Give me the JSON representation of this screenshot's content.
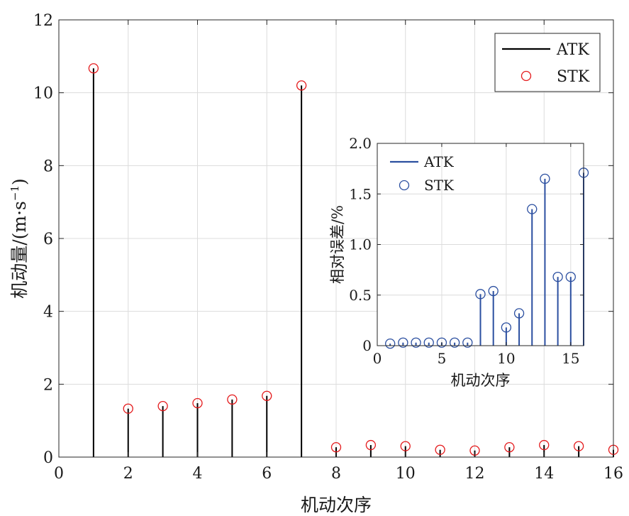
{
  "chart_data": [
    {
      "type": "stem",
      "xlabel": "机动次序",
      "ylabel": "机动量/(m·s⁻¹)",
      "ylabel_base": "机动量/(m·s",
      "ylabel_sup": "−1",
      "ylabel_close": ")",
      "xlim": [
        0,
        16
      ],
      "ylim": [
        0,
        12
      ],
      "xticks": [
        "0",
        "2",
        "4",
        "6",
        "8",
        "10",
        "12",
        "14",
        "16"
      ],
      "yticks": [
        "0",
        "2",
        "4",
        "6",
        "8",
        "10",
        "12"
      ],
      "grid": true,
      "legend_position": "top-right",
      "x": [
        1,
        2,
        3,
        4,
        5,
        6,
        7,
        8,
        9,
        10,
        11,
        12,
        13,
        14,
        15,
        16
      ],
      "series": [
        {
          "name": "ATK",
          "style": "stem",
          "color": "#000000",
          "values": [
            10.67,
            1.33,
            1.4,
            1.48,
            1.58,
            1.68,
            10.2,
            0.27,
            0.33,
            0.3,
            0.2,
            0.18,
            0.27,
            0.33,
            0.3,
            0.2
          ]
        },
        {
          "name": "STK",
          "style": "circle",
          "color": "#e41a1c",
          "values": [
            10.67,
            1.33,
            1.4,
            1.48,
            1.58,
            1.68,
            10.2,
            0.27,
            0.33,
            0.3,
            0.2,
            0.18,
            0.27,
            0.33,
            0.3,
            0.2
          ]
        }
      ]
    },
    {
      "type": "stem",
      "inset": true,
      "xlabel": "机动次序",
      "ylabel": "相对误差/%",
      "xlim": [
        0,
        16
      ],
      "ylim": [
        0,
        2.0
      ],
      "xticks": [
        "0",
        "5",
        "10",
        "15"
      ],
      "yticks": [
        "0",
        "0.5",
        "1.0",
        "1.5",
        "2.0"
      ],
      "grid": true,
      "legend_position": "top-left",
      "x": [
        1,
        2,
        3,
        4,
        5,
        6,
        7,
        8,
        9,
        10,
        11,
        12,
        13,
        14,
        15,
        16
      ],
      "series": [
        {
          "name": "ATK",
          "style": "stem",
          "color": "#2b4fa0",
          "values": [
            0.02,
            0.03,
            0.03,
            0.03,
            0.03,
            0.03,
            0.03,
            0.51,
            0.54,
            0.18,
            0.32,
            1.35,
            1.65,
            0.68,
            0.68,
            1.71
          ]
        },
        {
          "name": "STK",
          "style": "circle",
          "color": "#2b4fa0",
          "values": [
            0.02,
            0.03,
            0.03,
            0.03,
            0.03,
            0.03,
            0.03,
            0.51,
            0.54,
            0.18,
            0.32,
            1.35,
            1.65,
            0.68,
            0.68,
            1.71
          ]
        }
      ]
    }
  ]
}
